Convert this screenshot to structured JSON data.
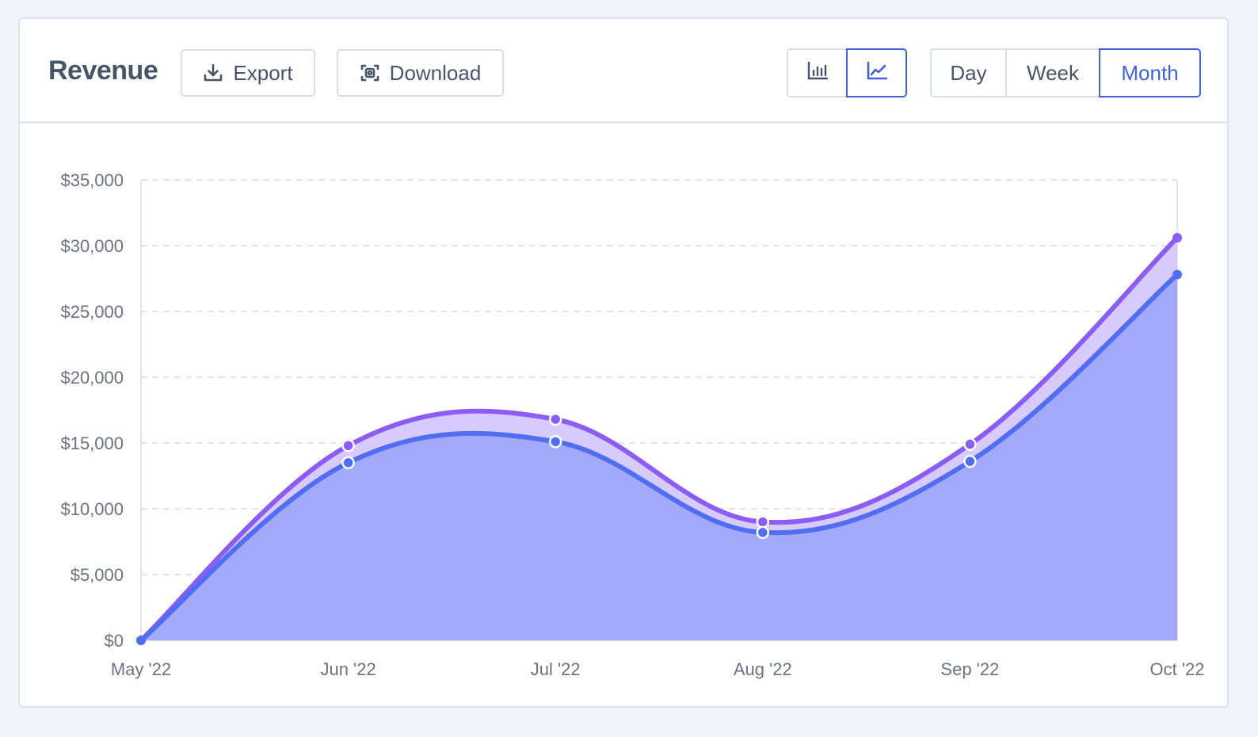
{
  "header": {
    "title": "Revenue",
    "export_label": "Export",
    "download_label": "Download"
  },
  "chart_type_toggle": {
    "options": [
      {
        "icon": "bar-chart-icon",
        "active": false
      },
      {
        "icon": "line-chart-icon",
        "active": true
      }
    ]
  },
  "range_toggle": {
    "options": [
      "Day",
      "Week",
      "Month"
    ],
    "selected": "Month"
  },
  "colors": {
    "accent": "#4361d8",
    "series_purple": "#8b5cf6",
    "series_blue": "#4f6ef2",
    "area_purple": "#d7cafc",
    "area_blue": "#a3a8f8"
  },
  "chart_data": {
    "type": "area",
    "title": "",
    "xlabel": "",
    "ylabel": "",
    "categories": [
      "May '22",
      "Jun '22",
      "Jul '22",
      "Aug '22",
      "Sep '22",
      "Oct '22"
    ],
    "ylim": [
      0,
      35000
    ],
    "y_ticks": [
      0,
      5000,
      10000,
      15000,
      20000,
      25000,
      30000,
      35000
    ],
    "y_tick_labels": [
      "$0",
      "$5,000",
      "$10,000",
      "$15,000",
      "$20,000",
      "$25,000",
      "$30,000",
      "$35,000"
    ],
    "grid": true,
    "legend": "none",
    "series": [
      {
        "color": "#8b5cf6",
        "fill": "#d7cafc",
        "values": [
          0,
          14800,
          16800,
          9000,
          14900,
          30600
        ]
      },
      {
        "color": "#4f6ef2",
        "fill": "#a3a8f8",
        "values": [
          0,
          13500,
          15100,
          8200,
          13600,
          27800
        ]
      }
    ]
  }
}
